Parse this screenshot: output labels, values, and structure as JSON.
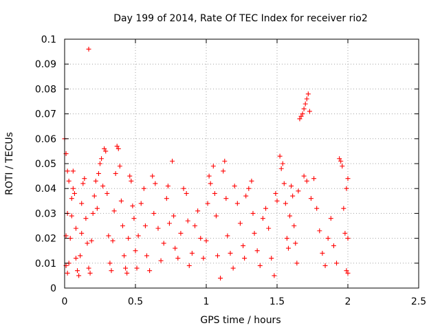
{
  "chart_data": {
    "type": "scatter",
    "title": "Day 199 of 2014, Rate Of TEC Index for receiver rio2",
    "xlabel": "GPS time / hours",
    "ylabel": "ROTI / TECUs",
    "xlim": [
      0,
      2.5
    ],
    "ylim": [
      0,
      0.1
    ],
    "xticks": [
      "0",
      "0.5",
      "1",
      "1.5",
      "2",
      "2.5"
    ],
    "yticks": [
      "0",
      "0.01",
      "0.02",
      "0.03",
      "0.04",
      "0.05",
      "0.06",
      "0.07",
      "0.08",
      "0.09",
      "0.1"
    ],
    "grid": true,
    "marker": "+",
    "color": "#ff0000",
    "series": [
      {
        "name": "ROTI",
        "points": [
          [
            0.0,
            0.06
          ],
          [
            0.01,
            0.054
          ],
          [
            0.02,
            0.047
          ],
          [
            0.03,
            0.043
          ],
          [
            0.02,
            0.03
          ],
          [
            0.01,
            0.021
          ],
          [
            0.01,
            0.009
          ],
          [
            0.02,
            0.006
          ],
          [
            0.03,
            0.01
          ],
          [
            0.04,
            0.02
          ],
          [
            0.05,
            0.029
          ],
          [
            0.05,
            0.036
          ],
          [
            0.06,
            0.04
          ],
          [
            0.06,
            0.047
          ],
          [
            0.07,
            0.038
          ],
          [
            0.08,
            0.024
          ],
          [
            0.08,
            0.012
          ],
          [
            0.09,
            0.007
          ],
          [
            0.1,
            0.005
          ],
          [
            0.11,
            0.013
          ],
          [
            0.12,
            0.022
          ],
          [
            0.12,
            0.034
          ],
          [
            0.13,
            0.042
          ],
          [
            0.14,
            0.044
          ],
          [
            0.15,
            0.028
          ],
          [
            0.16,
            0.018
          ],
          [
            0.17,
            0.096
          ],
          [
            0.17,
            0.008
          ],
          [
            0.18,
            0.006
          ],
          [
            0.19,
            0.019
          ],
          [
            0.2,
            0.03
          ],
          [
            0.21,
            0.037
          ],
          [
            0.22,
            0.043
          ],
          [
            0.23,
            0.032
          ],
          [
            0.24,
            0.046
          ],
          [
            0.25,
            0.05
          ],
          [
            0.26,
            0.052
          ],
          [
            0.27,
            0.041
          ],
          [
            0.28,
            0.056
          ],
          [
            0.29,
            0.055
          ],
          [
            0.3,
            0.038
          ],
          [
            0.31,
            0.021
          ],
          [
            0.32,
            0.01
          ],
          [
            0.33,
            0.007
          ],
          [
            0.34,
            0.019
          ],
          [
            0.35,
            0.031
          ],
          [
            0.36,
            0.046
          ],
          [
            0.37,
            0.057
          ],
          [
            0.38,
            0.056
          ],
          [
            0.39,
            0.049
          ],
          [
            0.4,
            0.035
          ],
          [
            0.41,
            0.025
          ],
          [
            0.42,
            0.013
          ],
          [
            0.43,
            0.008
          ],
          [
            0.44,
            0.006
          ],
          [
            0.45,
            0.02
          ],
          [
            0.46,
            0.045
          ],
          [
            0.47,
            0.043
          ],
          [
            0.48,
            0.033
          ],
          [
            0.49,
            0.028
          ],
          [
            0.5,
            0.015
          ],
          [
            0.51,
            0.008
          ],
          [
            0.52,
            0.021
          ],
          [
            0.54,
            0.034
          ],
          [
            0.56,
            0.04
          ],
          [
            0.57,
            0.025
          ],
          [
            0.58,
            0.013
          ],
          [
            0.6,
            0.007
          ],
          [
            0.62,
            0.045
          ],
          [
            0.63,
            0.03
          ],
          [
            0.64,
            0.042
          ],
          [
            0.66,
            0.024
          ],
          [
            0.68,
            0.011
          ],
          [
            0.7,
            0.018
          ],
          [
            0.72,
            0.036
          ],
          [
            0.73,
            0.041
          ],
          [
            0.74,
            0.026
          ],
          [
            0.76,
            0.051
          ],
          [
            0.77,
            0.029
          ],
          [
            0.78,
            0.016
          ],
          [
            0.8,
            0.012
          ],
          [
            0.82,
            0.022
          ],
          [
            0.84,
            0.04
          ],
          [
            0.86,
            0.038
          ],
          [
            0.87,
            0.027
          ],
          [
            0.88,
            0.009
          ],
          [
            0.9,
            0.014
          ],
          [
            0.92,
            0.025
          ],
          [
            0.94,
            0.031
          ],
          [
            0.96,
            0.02
          ],
          [
            0.98,
            0.012
          ],
          [
            1.0,
            0.019
          ],
          [
            1.01,
            0.034
          ],
          [
            1.02,
            0.045
          ],
          [
            1.03,
            0.042
          ],
          [
            1.05,
            0.049
          ],
          [
            1.06,
            0.038
          ],
          [
            1.07,
            0.029
          ],
          [
            1.08,
            0.013
          ],
          [
            1.1,
            0.004
          ],
          [
            1.12,
            0.047
          ],
          [
            1.13,
            0.051
          ],
          [
            1.14,
            0.036
          ],
          [
            1.15,
            0.021
          ],
          [
            1.17,
            0.014
          ],
          [
            1.19,
            0.008
          ],
          [
            1.2,
            0.041
          ],
          [
            1.22,
            0.034
          ],
          [
            1.24,
            0.026
          ],
          [
            1.26,
            0.017
          ],
          [
            1.27,
            0.012
          ],
          [
            1.28,
            0.037
          ],
          [
            1.3,
            0.04
          ],
          [
            1.32,
            0.043
          ],
          [
            1.33,
            0.03
          ],
          [
            1.34,
            0.022
          ],
          [
            1.36,
            0.015
          ],
          [
            1.38,
            0.009
          ],
          [
            1.4,
            0.028
          ],
          [
            1.42,
            0.032
          ],
          [
            1.44,
            0.024
          ],
          [
            1.46,
            0.012
          ],
          [
            1.48,
            0.005
          ],
          [
            1.49,
            0.038
          ],
          [
            1.5,
            0.035
          ],
          [
            1.52,
            0.053
          ],
          [
            1.53,
            0.048
          ],
          [
            1.54,
            0.05
          ],
          [
            1.55,
            0.042
          ],
          [
            1.56,
            0.034
          ],
          [
            1.57,
            0.02
          ],
          [
            1.58,
            0.016
          ],
          [
            1.59,
            0.029
          ],
          [
            1.6,
            0.041
          ],
          [
            1.61,
            0.037
          ],
          [
            1.62,
            0.025
          ],
          [
            1.63,
            0.018
          ],
          [
            1.64,
            0.01
          ],
          [
            1.65,
            0.039
          ],
          [
            1.66,
            0.068
          ],
          [
            1.67,
            0.069
          ],
          [
            1.68,
            0.07
          ],
          [
            1.69,
            0.072
          ],
          [
            1.7,
            0.074
          ],
          [
            1.71,
            0.076
          ],
          [
            1.72,
            0.078
          ],
          [
            1.73,
            0.071
          ],
          [
            1.69,
            0.045
          ],
          [
            1.71,
            0.043
          ],
          [
            1.74,
            0.036
          ],
          [
            1.76,
            0.044
          ],
          [
            1.78,
            0.032
          ],
          [
            1.8,
            0.023
          ],
          [
            1.82,
            0.014
          ],
          [
            1.84,
            0.009
          ],
          [
            1.86,
            0.02
          ],
          [
            1.88,
            0.028
          ],
          [
            1.9,
            0.017
          ],
          [
            1.92,
            0.01
          ],
          [
            1.94,
            0.052
          ],
          [
            1.95,
            0.051
          ],
          [
            1.96,
            0.049
          ],
          [
            1.97,
            0.032
          ],
          [
            1.98,
            0.022
          ],
          [
            1.99,
            0.007
          ],
          [
            1.99,
            0.04
          ],
          [
            2.0,
            0.044
          ],
          [
            2.0,
            0.02
          ],
          [
            2.0,
            0.006
          ]
        ]
      }
    ]
  }
}
